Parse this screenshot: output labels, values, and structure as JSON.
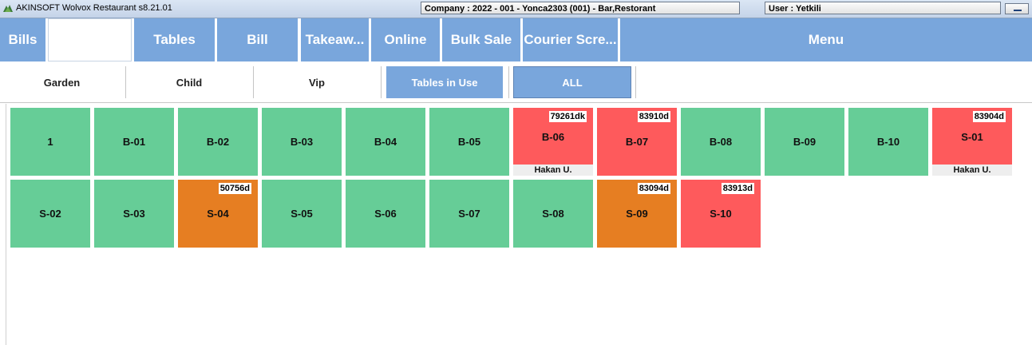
{
  "window": {
    "app_title": "AKINSOFT Wolvox Restaurant s8.21.01",
    "company": "Company : 2022 - 001 - Yonca2303 (001) - Bar,Restorant",
    "user": "User : Yetkili"
  },
  "nav": {
    "bills": "Bills",
    "blank": "",
    "tables": "Tables",
    "bill": "Bill",
    "takeaway": "Takeaw...",
    "online": "Online",
    "bulk_sale": "Bulk Sale",
    "courier": "Courier Scre...",
    "menu": "Menu"
  },
  "filters": {
    "garden": "Garden",
    "child": "Child",
    "vip": "Vip",
    "in_use": "Tables in Use",
    "all": "ALL"
  },
  "colors": {
    "free": "#66cd97",
    "occupied": "#fe5a5c",
    "pending": "#e67e22",
    "accent": "#79a6dc"
  },
  "tables": [
    {
      "name": "1",
      "status": "free",
      "badge": "",
      "waiter": ""
    },
    {
      "name": "B-01",
      "status": "free",
      "badge": "",
      "waiter": ""
    },
    {
      "name": "B-02",
      "status": "free",
      "badge": "",
      "waiter": ""
    },
    {
      "name": "B-03",
      "status": "free",
      "badge": "",
      "waiter": ""
    },
    {
      "name": "B-04",
      "status": "free",
      "badge": "",
      "waiter": ""
    },
    {
      "name": "B-05",
      "status": "free",
      "badge": "",
      "waiter": ""
    },
    {
      "name": "B-06",
      "status": "occupied",
      "badge": "79261dk",
      "waiter": "Hakan U."
    },
    {
      "name": "B-07",
      "status": "occupied",
      "badge": "83910d",
      "waiter": ""
    },
    {
      "name": "B-08",
      "status": "free",
      "badge": "",
      "waiter": ""
    },
    {
      "name": "B-09",
      "status": "free",
      "badge": "",
      "waiter": ""
    },
    {
      "name": "B-10",
      "status": "free",
      "badge": "",
      "waiter": ""
    },
    {
      "name": "S-01",
      "status": "occupied",
      "badge": "83904d",
      "waiter": "Hakan U."
    },
    {
      "name": "S-02",
      "status": "free",
      "badge": "",
      "waiter": ""
    },
    {
      "name": "S-03",
      "status": "free",
      "badge": "",
      "waiter": ""
    },
    {
      "name": "S-04",
      "status": "pending",
      "badge": "50756d",
      "waiter": ""
    },
    {
      "name": "S-05",
      "status": "free",
      "badge": "",
      "waiter": ""
    },
    {
      "name": "S-06",
      "status": "free",
      "badge": "",
      "waiter": ""
    },
    {
      "name": "S-07",
      "status": "free",
      "badge": "",
      "waiter": ""
    },
    {
      "name": "S-08",
      "status": "free",
      "badge": "",
      "waiter": ""
    },
    {
      "name": "S-09",
      "status": "pending",
      "badge": "83094d",
      "waiter": ""
    },
    {
      "name": "S-10",
      "status": "occupied",
      "badge": "83913d",
      "waiter": ""
    }
  ]
}
